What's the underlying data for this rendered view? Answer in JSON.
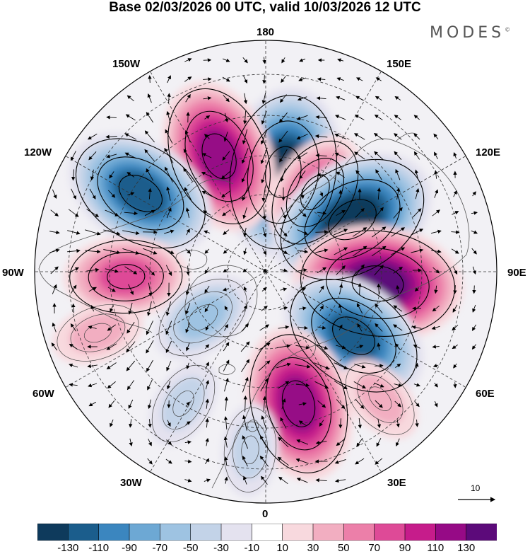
{
  "title": "Base 02/03/2026 00 UTC, valid 10/03/2026 12 UTC",
  "brand": "MODES",
  "brand_mark": "©",
  "longitude_labels": {
    "lon_180": "180",
    "lon_150e": "150E",
    "lon_120e": "120E",
    "lon_90e": "90E",
    "lon_60e": "60E",
    "lon_30e": "30E",
    "lon_0": "0",
    "lon_30w": "30W",
    "lon_60w": "60W",
    "lon_90w": "90W",
    "lon_120w": "120W",
    "lon_150w": "150W"
  },
  "wind_reference": {
    "label": "10"
  },
  "colors": {
    "levels": [
      "#0e3a5c",
      "#1b5d8c",
      "#3b86bf",
      "#6da8d4",
      "#9ec3e2",
      "#c3d3e8",
      "#e4e2ef",
      "#ffffff",
      "#f8d9de",
      "#f2aec1",
      "#ec7fa9",
      "#de4a97",
      "#c61c8b",
      "#960a86",
      "#5c0a7a"
    ],
    "land_line": "#555555",
    "grid_line": "#333333"
  },
  "colorbar_ticks": [
    "-130",
    "-110",
    "-90",
    "-70",
    "-50",
    "-30",
    "-10",
    "10",
    "30",
    "50",
    "70",
    "90",
    "110",
    "130"
  ],
  "anomaly_centers": [
    {
      "name": "low-north-pacific",
      "value": -130,
      "lon": 170,
      "colat": 26
    },
    {
      "name": "high-bering",
      "value": 110,
      "lon": -158,
      "colat": 32
    },
    {
      "name": "high-east-siberia",
      "value": 70,
      "lon": 148,
      "colat": 24
    },
    {
      "name": "low-gulf-alaska",
      "value": -110,
      "lon": -122,
      "colat": 38
    },
    {
      "name": "low-siberia",
      "value": -130,
      "lon": 121,
      "colat": 26
    },
    {
      "name": "high-canada",
      "value": 70,
      "lon": -88,
      "colat": 36
    },
    {
      "name": "high-central-asia",
      "value": 130,
      "lon": 84,
      "colat": 29
    },
    {
      "name": "low-greenland",
      "value": -50,
      "lon": -54,
      "colat": 20
    },
    {
      "name": "low-ural",
      "value": -110,
      "lon": 54,
      "colat": 28
    },
    {
      "name": "high-europe",
      "value": 110,
      "lon": 14,
      "colat": 35
    },
    {
      "name": "low-north-atlantic",
      "value": -30,
      "lon": -32,
      "colat": 40
    },
    {
      "name": "high-west-russia",
      "value": 30,
      "lon": 42,
      "colat": 44
    },
    {
      "name": "high-labrador",
      "value": 30,
      "lon": -70,
      "colat": 46
    },
    {
      "name": "low-eastern-med",
      "value": -30,
      "lon": -5,
      "colat": 46
    }
  ]
}
